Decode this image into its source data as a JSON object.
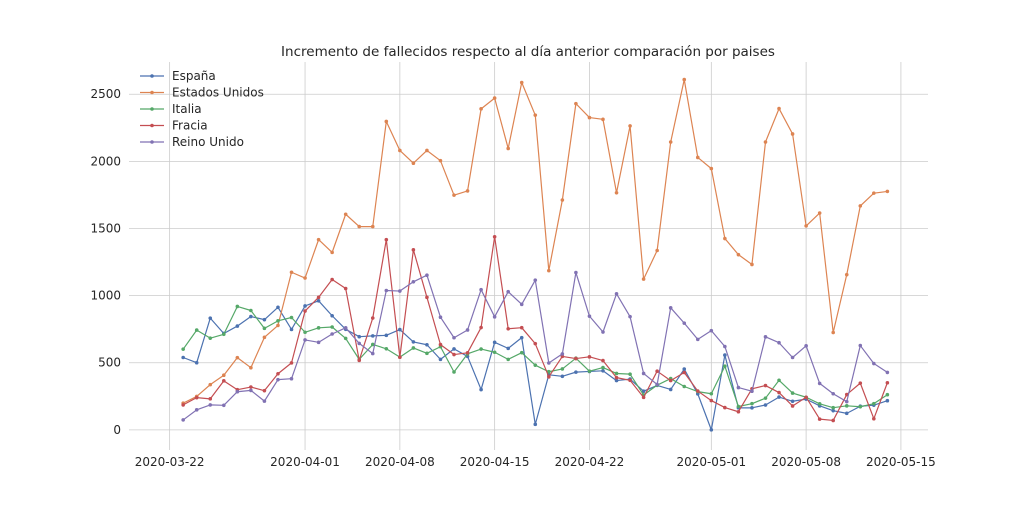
{
  "chart_data": {
    "type": "line",
    "title": "Incremento de fallecidos respecto al día anterior comparación por paises",
    "xlabel": "",
    "ylabel": "",
    "x_start": "2020-03-23",
    "x_end": "2020-05-14",
    "xlim": [
      "2020-03-19",
      "2020-05-17"
    ],
    "ylim": [
      -150,
      2740
    ],
    "xticks": [
      "2020-03-22",
      "2020-04-01",
      "2020-04-08",
      "2020-04-15",
      "2020-04-22",
      "2020-05-01",
      "2020-05-08",
      "2020-05-15"
    ],
    "yticks": [
      0,
      500,
      1000,
      1500,
      2000,
      2500
    ],
    "grid": true,
    "legend_position": "top-left",
    "series": [
      {
        "name": "España",
        "color": "#4c72b0",
        "values": [
          539,
          500,
          832,
          718,
          773,
          844,
          821,
          913,
          748,
          923,
          961,
          850,
          749,
          694,
          700,
          704,
          747,
          655,
          634,
          525,
          603,
          547,
          300,
          652,
          607,
          687,
          41,
          410,
          399,
          430,
          435,
          440,
          367,
          378,
          288,
          331,
          301,
          453,
          268,
          0,
          557,
          164,
          164,
          185,
          244,
          213,
          229,
          179,
          143,
          123,
          176,
          184,
          217
        ]
      },
      {
        "name": "Estados Unidos",
        "color": "#dd8452",
        "values": [
          199,
          249,
          337,
          407,
          538,
          463,
          689,
          778,
          1174,
          1131,
          1417,
          1322,
          1606,
          1514,
          1514,
          2297,
          2081,
          1986,
          2081,
          2005,
          1748,
          1780,
          2391,
          2471,
          2096,
          2587,
          2344,
          1186,
          1712,
          2430,
          2326,
          2313,
          1766,
          2264,
          1123,
          1336,
          2144,
          2609,
          2029,
          1946,
          1425,
          1305,
          1232,
          2144,
          2393,
          2204,
          1519,
          1615,
          725,
          1156,
          1668,
          1763,
          1776
        ]
      },
      {
        "name": "Italia",
        "color": "#55a868",
        "values": [
          601,
          743,
          683,
          712,
          919,
          889,
          756,
          812,
          837,
          727,
          760,
          766,
          681,
          525,
          636,
          604,
          542,
          610,
          570,
          619,
          431,
          566,
          602,
          578,
          525,
          575,
          482,
          433,
          454,
          534,
          437,
          464,
          420,
          415,
          260,
          333,
          382,
          323,
          285,
          269,
          474,
          174,
          195,
          236,
          369,
          274,
          243,
          194,
          165,
          179,
          172,
          195,
          262
        ]
      },
      {
        "name": "Fracia",
        "color": "#c44e52",
        "values": [
          186,
          240,
          231,
          365,
          299,
          319,
          292,
          418,
          499,
          885,
          987,
          1120,
          1053,
          518,
          833,
          1417,
          541,
          1341,
          987,
          635,
          561,
          574,
          762,
          1438,
          753,
          761,
          642,
          395,
          547,
          531,
          544,
          516,
          389,
          369,
          242,
          437,
          367,
          427,
          289,
          218,
          166,
          135,
          306,
          330,
          278,
          178,
          243,
          80,
          70,
          263,
          348,
          83,
          351
        ]
      },
      {
        "name": "Reino Unido",
        "color": "#8172b3",
        "values": [
          74,
          149,
          186,
          183,
          284,
          294,
          214,
          374,
          381,
          670,
          652,
          714,
          760,
          644,
          568,
          1038,
          1034,
          1103,
          1152,
          839,
          686,
          744,
          1044,
          842,
          1029,
          935,
          1115,
          498,
          566,
          1172,
          847,
          729,
          1013,
          843,
          420,
          338,
          909,
          795,
          674,
          739,
          621,
          315,
          288,
          693,
          649,
          539,
          626,
          346,
          269,
          210,
          628,
          494,
          428
        ]
      }
    ]
  }
}
